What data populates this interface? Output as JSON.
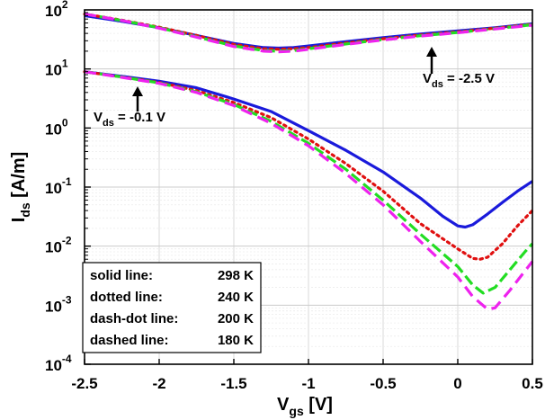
{
  "chart_data": {
    "type": "line",
    "xlabel": {
      "main": "V",
      "sub": "gs",
      "rest": " [V]"
    },
    "ylabel": {
      "main": "I",
      "sub": "ds",
      "rest": " [A/m]"
    },
    "xlim": [
      -2.5,
      0.5
    ],
    "ylim": [
      0.0001,
      100
    ],
    "yscale": "log",
    "grid": true,
    "xticks": [
      -2.5,
      -2,
      -1.5,
      -1,
      -0.5,
      0,
      0.5
    ],
    "xtick_labels": [
      "-2.5",
      "-2",
      "-1.5",
      "-1",
      "-0.5",
      "0",
      "0.5"
    ],
    "yticks": [
      {
        "value": 0.0001,
        "base": "10",
        "exp": "-4"
      },
      {
        "value": 0.001,
        "base": "10",
        "exp": "-3"
      },
      {
        "value": 0.01,
        "base": "10",
        "exp": "-2"
      },
      {
        "value": 0.1,
        "base": "10",
        "exp": "-1"
      },
      {
        "value": 1,
        "base": "10",
        "exp": "0"
      },
      {
        "value": 10,
        "base": "10",
        "exp": "1"
      },
      {
        "value": 100,
        "base": "10",
        "exp": "2"
      }
    ],
    "series": [
      {
        "temp": "298 K",
        "vds": "-2.5 V",
        "color": "#1a1adb",
        "style": "solid",
        "x": [
          -2.5,
          -2.25,
          -2.0,
          -1.75,
          -1.5,
          -1.3,
          -1.2,
          -1.1,
          -1.0,
          -0.75,
          -0.5,
          -0.25,
          0.0,
          0.25,
          0.5
        ],
        "y": [
          80,
          64,
          50,
          37,
          27,
          23,
          22.5,
          23,
          24.5,
          29,
          34,
          39,
          44,
          50,
          58
        ]
      },
      {
        "temp": "240 K",
        "vds": "-2.5 V",
        "color": "#e01010",
        "style": "dotted",
        "x": [
          -2.5,
          -2.25,
          -2.0,
          -1.75,
          -1.5,
          -1.3,
          -1.2,
          -1.1,
          -1.0,
          -0.75,
          -0.5,
          -0.25,
          0.0,
          0.25,
          0.5
        ],
        "y": [
          85,
          67,
          51,
          37,
          26,
          22,
          21.5,
          22,
          23,
          27.5,
          32.5,
          37.5,
          42.5,
          49,
          57
        ]
      },
      {
        "temp": "200 K",
        "vds": "-2.5 V",
        "color": "#22dd22",
        "style": "dashdot",
        "x": [
          -2.5,
          -2.25,
          -2.0,
          -1.75,
          -1.5,
          -1.3,
          -1.2,
          -1.1,
          -1.0,
          -0.75,
          -0.5,
          -0.25,
          0.0,
          0.25,
          0.5
        ],
        "y": [
          85,
          66,
          50,
          35,
          24.5,
          20.5,
          20,
          20.5,
          22,
          26.5,
          31.5,
          36.5,
          41.5,
          48,
          56
        ]
      },
      {
        "temp": "180 K",
        "vds": "-2.5 V",
        "color": "#ee22ee",
        "style": "dashed",
        "x": [
          -2.5,
          -2.25,
          -2.0,
          -1.75,
          -1.5,
          -1.3,
          -1.2,
          -1.1,
          -1.0,
          -0.75,
          -0.5,
          -0.25,
          0.0,
          0.25,
          0.5
        ],
        "y": [
          85,
          66,
          49,
          34.5,
          24,
          20,
          19.5,
          20,
          21.5,
          26,
          31,
          36,
          41,
          47.5,
          55
        ]
      },
      {
        "temp": "298 K",
        "vds": "-0.1 V",
        "color": "#1a1adb",
        "style": "solid",
        "x": [
          -2.5,
          -2.25,
          -2.0,
          -1.75,
          -1.5,
          -1.25,
          -1.0,
          -0.75,
          -0.5,
          -0.25,
          -0.1,
          0.0,
          0.05,
          0.1,
          0.2,
          0.3,
          0.4,
          0.5
        ],
        "y": [
          9,
          7.5,
          6.2,
          4.8,
          3.1,
          1.9,
          0.9,
          0.42,
          0.18,
          0.065,
          0.032,
          0.022,
          0.021,
          0.023,
          0.035,
          0.055,
          0.085,
          0.125
        ]
      },
      {
        "temp": "240 K",
        "vds": "-0.1 V",
        "color": "#e01010",
        "style": "dotted",
        "x": [
          -2.5,
          -2.25,
          -2.0,
          -1.75,
          -1.5,
          -1.25,
          -1.0,
          -0.75,
          -0.5,
          -0.25,
          0.0,
          0.1,
          0.15,
          0.2,
          0.3,
          0.4,
          0.5
        ],
        "y": [
          9,
          7.3,
          5.9,
          4.3,
          2.7,
          1.5,
          0.65,
          0.25,
          0.085,
          0.024,
          0.009,
          0.0062,
          0.006,
          0.0065,
          0.011,
          0.022,
          0.04
        ]
      },
      {
        "temp": "200 K",
        "vds": "-0.1 V",
        "color": "#22dd22",
        "style": "dashdot",
        "x": [
          -2.5,
          -2.25,
          -2.0,
          -1.75,
          -1.5,
          -1.25,
          -1.0,
          -0.75,
          -0.5,
          -0.25,
          0.0,
          0.1,
          0.17,
          0.25,
          0.35,
          0.45,
          0.5
        ],
        "y": [
          9,
          7.3,
          5.8,
          4.1,
          2.5,
          1.3,
          0.55,
          0.2,
          0.06,
          0.016,
          0.0045,
          0.0022,
          0.0016,
          0.002,
          0.004,
          0.008,
          0.011
        ]
      },
      {
        "temp": "180 K",
        "vds": "-0.1 V",
        "color": "#ee22ee",
        "style": "dashed",
        "x": [
          -2.5,
          -2.25,
          -2.0,
          -1.75,
          -1.5,
          -1.25,
          -1.0,
          -0.75,
          -0.5,
          -0.25,
          0.0,
          0.1,
          0.2,
          0.25,
          0.35,
          0.45,
          0.5
        ],
        "y": [
          9,
          7.2,
          5.7,
          4.0,
          2.4,
          1.2,
          0.5,
          0.17,
          0.05,
          0.012,
          0.003,
          0.0014,
          0.00085,
          0.0009,
          0.0018,
          0.0038,
          0.0055
        ]
      }
    ],
    "annotations": [
      {
        "main": "V",
        "sub": "ds",
        "rest": " = -2.5 V",
        "x": 0.05,
        "y": 40
      },
      {
        "main": "V",
        "sub": "ds",
        "rest": " = -0.1 V",
        "x": -2.1,
        "y": 6.3
      }
    ],
    "legend": {
      "position": "bottom-left",
      "entries": [
        {
          "label": "solid line:",
          "value": "298 K"
        },
        {
          "label": "dotted line:",
          "value": "240 K"
        },
        {
          "label": "dash-dot line:",
          "value": "200 K"
        },
        {
          "label": "dashed line:",
          "value": "180 K"
        }
      ]
    }
  }
}
